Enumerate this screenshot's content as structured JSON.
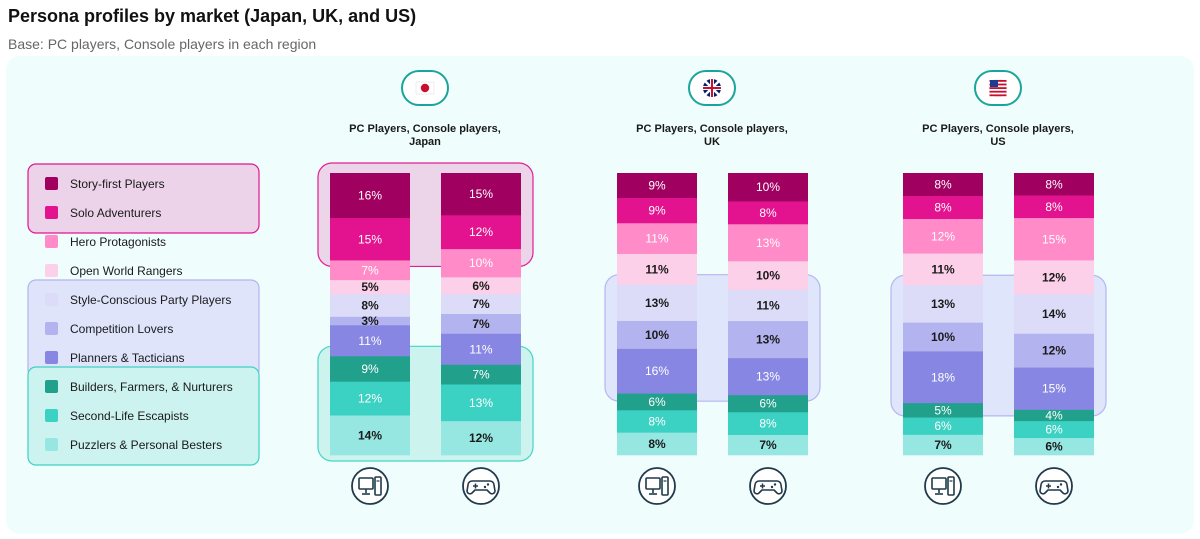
{
  "title": "Persona profiles by market (Japan, UK, and US)",
  "subtitle": "Base: PC players, Console players in each region",
  "chart_data": {
    "type": "bar",
    "stacked": true,
    "normalized_percent": true,
    "personas": [
      {
        "name": "Story-first Players",
        "color": "#a0005f"
      },
      {
        "name": "Solo Adventurers",
        "color": "#e3138f"
      },
      {
        "name": "Hero Protagonists",
        "color": "#ff8cc8"
      },
      {
        "name": "Open World Rangers",
        "color": "#fcd0e8"
      },
      {
        "name": "Style-Conscious Party Players",
        "color": "#dcdcf8"
      },
      {
        "name": "Competition Lovers",
        "color": "#b3b3ef"
      },
      {
        "name": "Planners & Tacticians",
        "color": "#8787e3"
      },
      {
        "name": "Builders, Farmers, & Nurturers",
        "color": "#21a08c"
      },
      {
        "name": "Second-Life Escapists",
        "color": "#3cd2c3"
      },
      {
        "name": "Puzzlers & Personal Besters",
        "color": "#96e6e1"
      }
    ],
    "markets": [
      {
        "title": [
          "PC Players, Console players,",
          "Japan"
        ],
        "flag": "japan-flag",
        "bars": [
          {
            "platform": "PC",
            "icon": "pc-icon",
            "values": [
              16,
              15,
              7,
              5,
              8,
              3,
              11,
              9,
              12,
              14
            ]
          },
          {
            "platform": "Console",
            "icon": "gamepad-icon",
            "values": [
              15,
              12,
              10,
              6,
              7,
              7,
              11,
              7,
              13,
              12
            ]
          }
        ]
      },
      {
        "title": [
          "PC Players, Console players,",
          "UK"
        ],
        "flag": "uk-flag",
        "bars": [
          {
            "platform": "PC",
            "icon": "pc-icon",
            "values": [
              9,
              9,
              11,
              11,
              13,
              10,
              16,
              6,
              8,
              8
            ]
          },
          {
            "platform": "Console",
            "icon": "gamepad-icon",
            "values": [
              10,
              8,
              13,
              10,
              11,
              13,
              13,
              6,
              8,
              7
            ]
          }
        ]
      },
      {
        "title": [
          "PC Players, Console players,",
          "US"
        ],
        "flag": "us-flag",
        "bars": [
          {
            "platform": "PC",
            "icon": "pc-icon",
            "values": [
              8,
              8,
              12,
              11,
              13,
              10,
              18,
              5,
              6,
              7
            ]
          },
          {
            "platform": "Console",
            "icon": "gamepad-icon",
            "values": [
              8,
              8,
              15,
              12,
              14,
              12,
              15,
              4,
              6,
              6
            ]
          }
        ]
      }
    ],
    "highlight_groups": [
      {
        "name": "story-solo-group",
        "color": "#e3138f",
        "fill": "#ecd3e9",
        "personas": [
          0,
          1
        ],
        "markets": [
          0
        ]
      },
      {
        "name": "planner-style-group",
        "color": "#b3b3ef",
        "fill": "#dfe4fb",
        "personas": [
          4,
          5,
          6
        ],
        "markets": [
          1,
          2
        ]
      },
      {
        "name": "builder-puzzle-group",
        "color": "#3cd2c3",
        "fill": "#ccf3ef",
        "personas": [
          7,
          8,
          9
        ],
        "markets": [
          0
        ]
      }
    ]
  }
}
